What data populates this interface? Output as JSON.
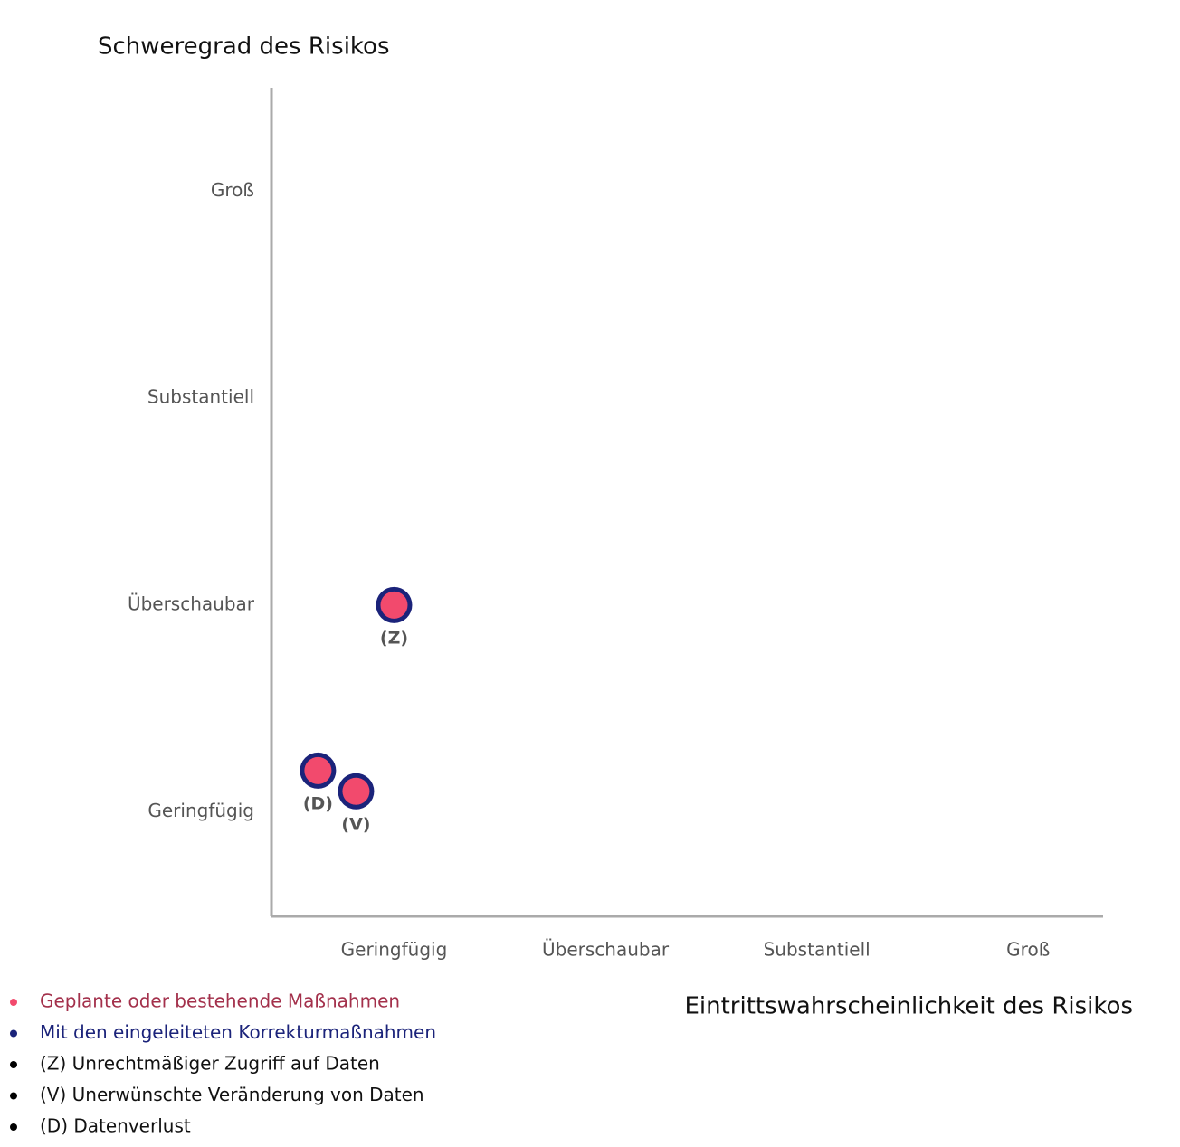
{
  "chart_data": {
    "type": "scatter",
    "y_title": "Schweregrad des Risikos",
    "x_title": "Eintrittswahrscheinlichkeit des Risikos",
    "xlim": [
      0.42,
      4.35
    ],
    "ylim": [
      0.5,
      4.5
    ],
    "xticks": [
      {
        "value": 1,
        "label": "Geringfügig"
      },
      {
        "value": 2,
        "label": "Überschaubar"
      },
      {
        "value": 3,
        "label": "Substantiell"
      },
      {
        "value": 4,
        "label": "Groß"
      }
    ],
    "yticks": [
      {
        "value": 1,
        "label": "Geringfügig"
      },
      {
        "value": 2,
        "label": "Überschaubar"
      },
      {
        "value": 3,
        "label": "Substantiell"
      },
      {
        "value": 4,
        "label": "Groß"
      }
    ],
    "x": [
      1.0,
      0.82,
      0.64
    ],
    "point_labels": [
      "(Z)",
      "(V)",
      "(D)"
    ],
    "series": [
      {
        "name": "Geplante oder bestehende Maßnahmen",
        "color": "#f24a6d",
        "values": [
          2.0,
          1.1,
          1.2
        ]
      },
      {
        "name": "Mit den eingeleiteten Korrekturmaßnahmen",
        "color": "#1b237a",
        "values": [
          2.0,
          1.1,
          1.2
        ]
      }
    ],
    "notes": [
      "(Z) Unrechtmäßiger Zugriff auf Daten",
      "(V) Unerwünschte Veränderung von Daten",
      "(D) Datenverlust"
    ]
  }
}
